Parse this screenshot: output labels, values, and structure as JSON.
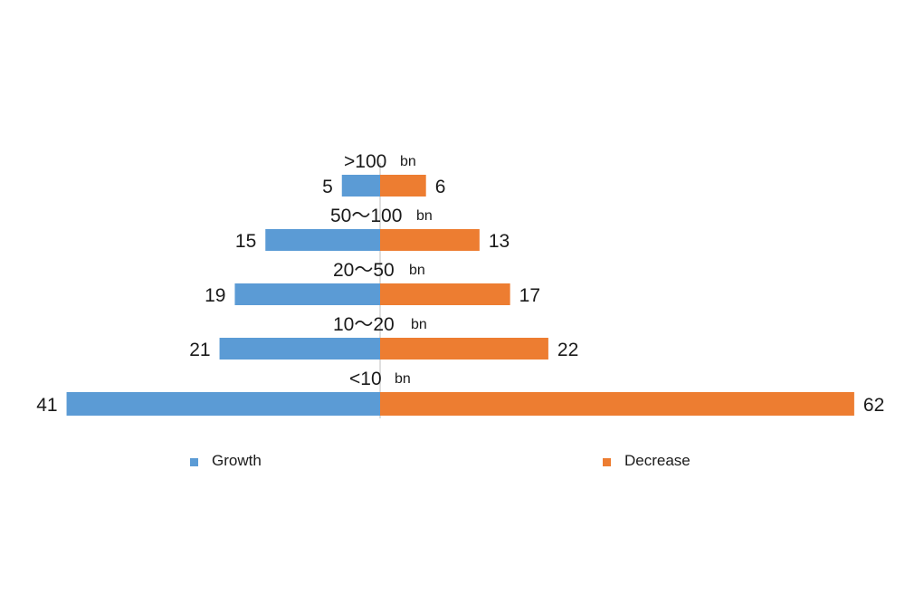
{
  "chart_data": {
    "type": "bar",
    "orientation": "horizontal-diverging",
    "categories": [
      ">100",
      "50～100",
      "20～50",
      "10～20",
      "<10"
    ],
    "unit": "bn",
    "series": [
      {
        "name": "Growth",
        "values": [
          5,
          15,
          19,
          21,
          41
        ],
        "color": "#5b9bd5",
        "side": "left"
      },
      {
        "name": "Decrease",
        "values": [
          6,
          13,
          17,
          22,
          62
        ],
        "color": "#ed7d31",
        "side": "right"
      }
    ],
    "legend_position": "bottom",
    "grid": false
  }
}
